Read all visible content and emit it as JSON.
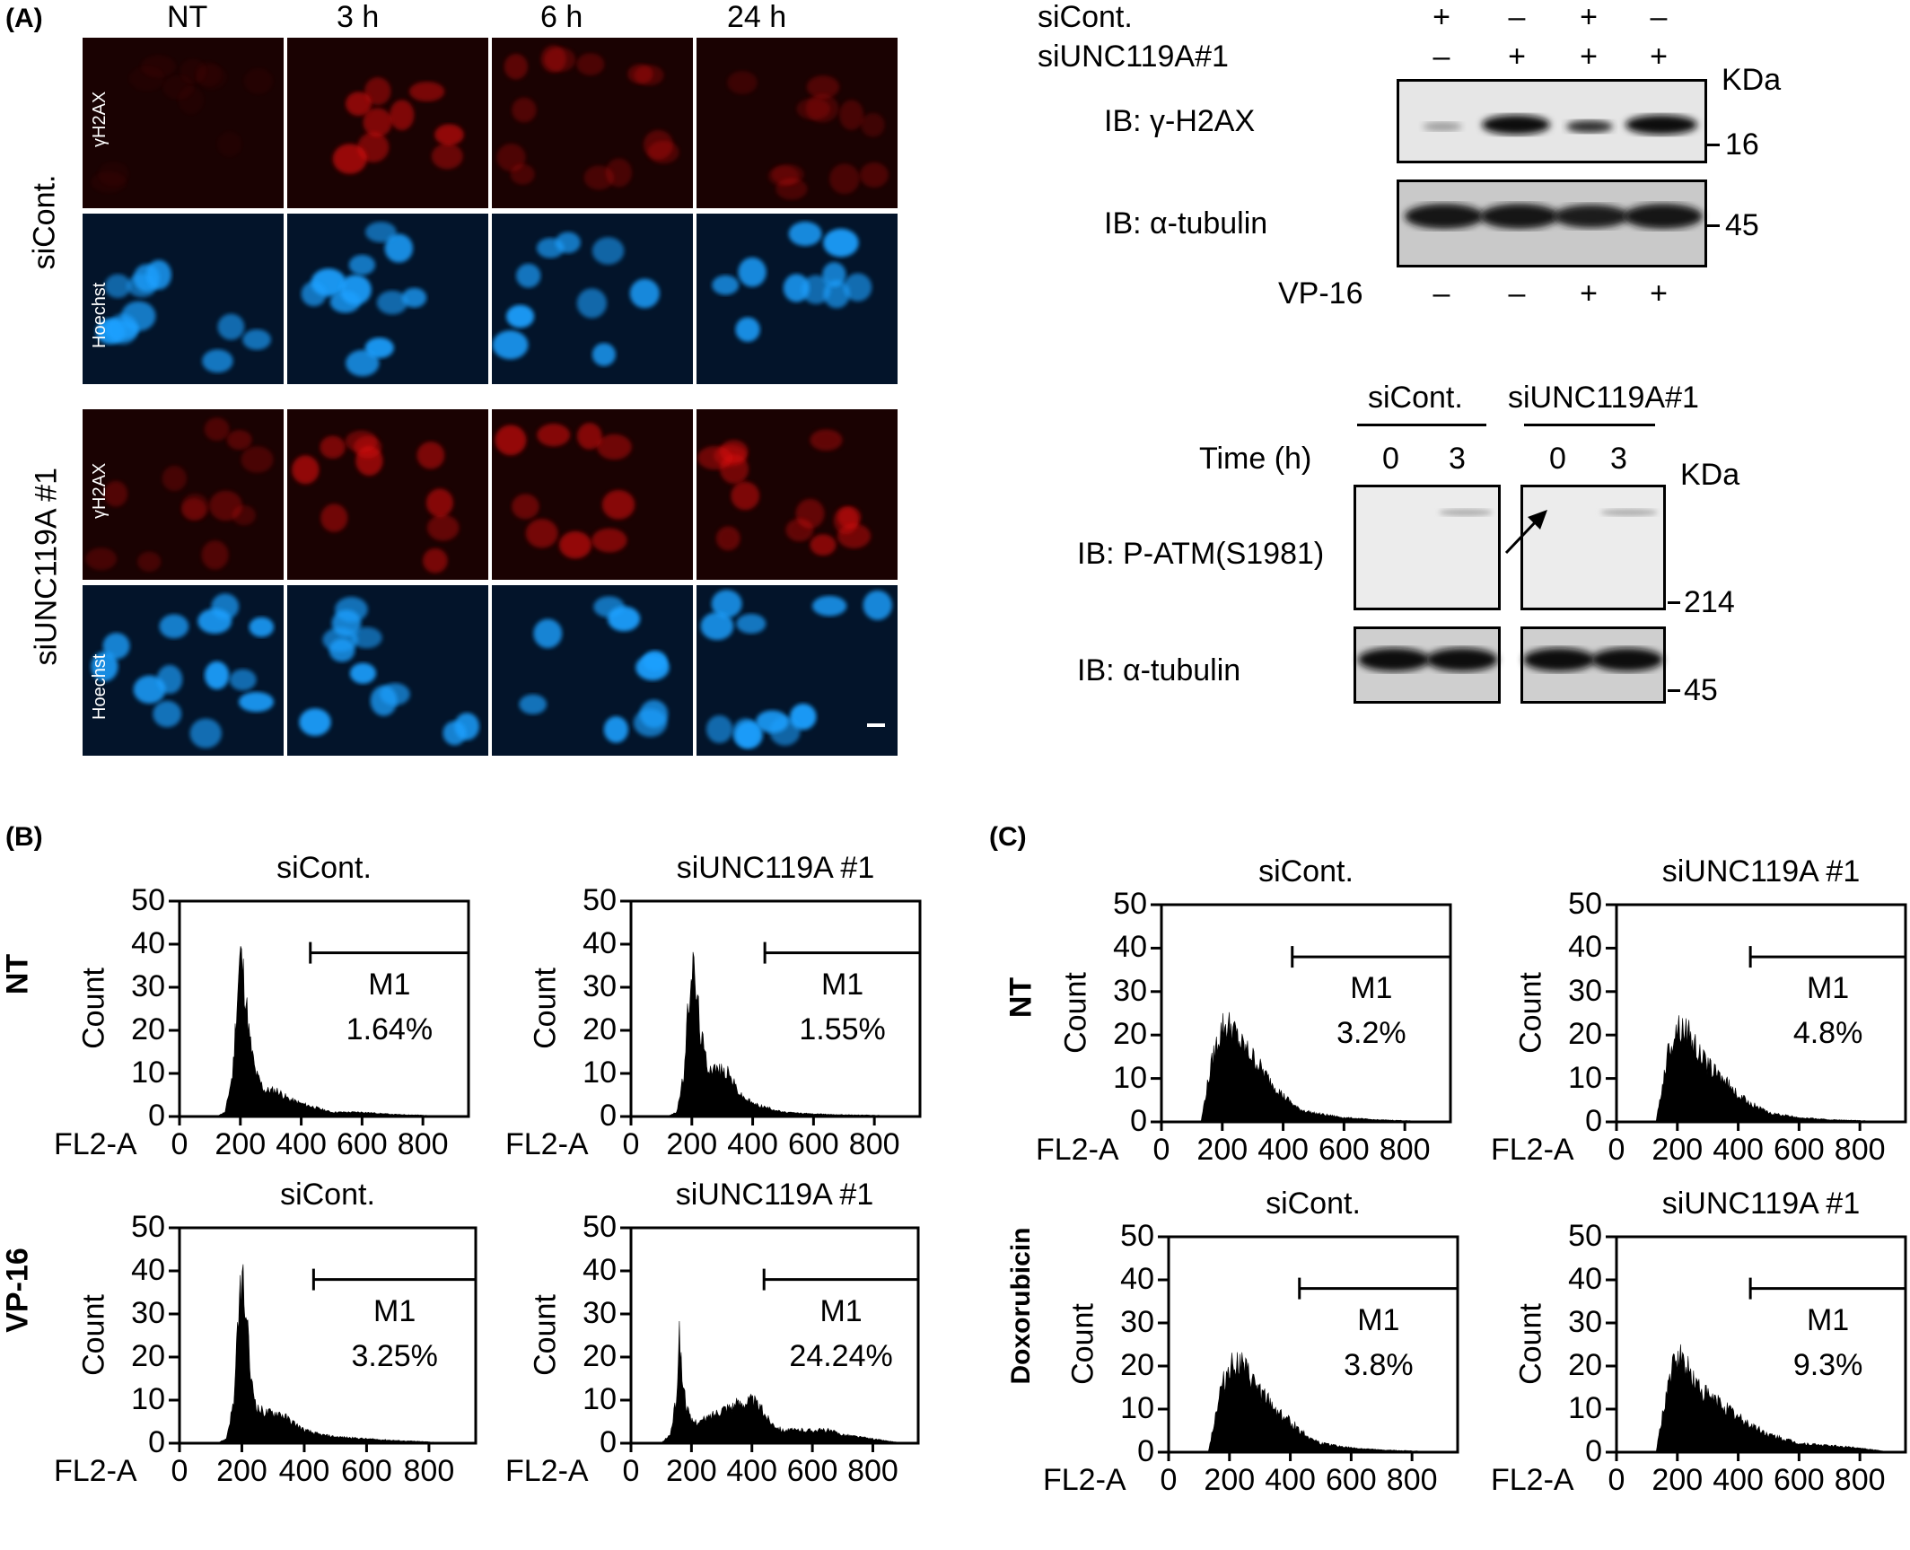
{
  "panel_labels": {
    "a": "(A)",
    "b": "(B)",
    "c": "(C)"
  },
  "panelA": {
    "columns": [
      "NT",
      "3 h",
      "6 h",
      "24 h"
    ],
    "row_groups": [
      "siCont.",
      "siUNC119A #1"
    ],
    "stains": [
      "γH2AX",
      "Hoechst"
    ]
  },
  "blot1": {
    "row_labels": [
      "siCont.",
      "siUNC119A#1"
    ],
    "sicont_signs": [
      "+",
      "–",
      "+",
      "–"
    ],
    "siunc_signs": [
      "–",
      "+",
      "+",
      "+"
    ],
    "kda": "KDa",
    "bands": [
      "IB: γ-H2AX",
      "IB: α-tubulin"
    ],
    "markers": [
      "16",
      "45"
    ],
    "treatment_label": "VP-16",
    "vp16_signs": [
      "–",
      "–",
      "+",
      "+"
    ]
  },
  "blot2": {
    "group_labels": [
      "siCont.",
      "siUNC119A#1"
    ],
    "time_label": "Time (h)",
    "times": [
      "0",
      "3",
      "0",
      "3"
    ],
    "kda": "KDa",
    "bands": [
      "IB: P-ATM(S1981)",
      "IB: α-tubulin"
    ],
    "markers": [
      "214",
      "45"
    ]
  },
  "flow": {
    "row_labels_b": [
      "NT",
      "VP-16"
    ],
    "row_labels_c": [
      "NT",
      "Doxorubicin"
    ],
    "ylabel": "Count",
    "xlabel": "FL2-A",
    "gate": "M1"
  },
  "chart_data": [
    {
      "type": "area",
      "panel": "B",
      "row": "NT",
      "title": "siCont.",
      "gate_percent": "1.64%",
      "xlim": [
        0,
        950
      ],
      "ylim": [
        0,
        50
      ],
      "x_ticks": [
        "0",
        "200",
        "400",
        "600",
        "800"
      ],
      "y_ticks": [
        "0",
        "10",
        "20",
        "30",
        "40",
        "50"
      ],
      "x": [
        120,
        150,
        175,
        190,
        200,
        215,
        230,
        250,
        280,
        320,
        360,
        400,
        450,
        500,
        600,
        700,
        800,
        900
      ],
      "y": [
        0,
        1,
        10,
        28,
        38,
        30,
        18,
        10,
        6,
        6,
        4,
        3,
        2,
        1,
        1,
        0.5,
        0.3,
        0
      ]
    },
    {
      "type": "area",
      "panel": "B",
      "row": "NT",
      "title": "siUNC119A #1",
      "gate_percent": "1.55%",
      "xlim": [
        0,
        950
      ],
      "ylim": [
        0,
        50
      ],
      "x_ticks": [
        "0",
        "200",
        "400",
        "600",
        "800"
      ],
      "y_ticks": [
        "0",
        "10",
        "20",
        "30",
        "40",
        "50"
      ],
      "x": [
        120,
        150,
        175,
        190,
        200,
        215,
        230,
        250,
        280,
        320,
        360,
        400,
        450,
        500,
        600,
        700,
        800,
        900
      ],
      "y": [
        0,
        1,
        10,
        27,
        36,
        29,
        19,
        12,
        11,
        10,
        5,
        3,
        2,
        1,
        0.6,
        0.4,
        0.3,
        0
      ]
    },
    {
      "type": "area",
      "panel": "B",
      "row": "VP-16",
      "title": "siCont.",
      "gate_percent": "3.25%",
      "xlim": [
        0,
        950
      ],
      "ylim": [
        0,
        50
      ],
      "x_ticks": [
        "0",
        "200",
        "400",
        "600",
        "800"
      ],
      "y_ticks": [
        "0",
        "10",
        "20",
        "30",
        "40",
        "50"
      ],
      "x": [
        120,
        150,
        175,
        190,
        200,
        215,
        230,
        250,
        280,
        320,
        360,
        400,
        450,
        500,
        600,
        700,
        800,
        900
      ],
      "y": [
        0,
        1,
        10,
        30,
        39,
        28,
        14,
        8,
        7,
        7,
        5,
        3,
        2,
        1.5,
        1,
        0.6,
        0.3,
        0
      ]
    },
    {
      "type": "area",
      "panel": "B",
      "row": "VP-16",
      "title": "siUNC119A #1",
      "gate_percent": "24.24%",
      "xlim": [
        0,
        950
      ],
      "ylim": [
        0,
        50
      ],
      "x_ticks": [
        "0",
        "200",
        "400",
        "600",
        "800"
      ],
      "y_ticks": [
        "0",
        "10",
        "20",
        "30",
        "40",
        "50"
      ],
      "x": [
        100,
        130,
        150,
        160,
        170,
        185,
        200,
        230,
        260,
        300,
        350,
        400,
        430,
        460,
        500,
        550,
        600,
        650,
        700,
        800,
        900
      ],
      "y": [
        0,
        2,
        10,
        25,
        15,
        8,
        5,
        5,
        6,
        8,
        9,
        10,
        8,
        5,
        3,
        3,
        3,
        3,
        2,
        1,
        0
      ]
    },
    {
      "type": "area",
      "panel": "C",
      "row": "NT",
      "title": "siCont.",
      "gate_percent": "3.2%",
      "xlim": [
        0,
        950
      ],
      "ylim": [
        0,
        50
      ],
      "x_ticks": [
        "0",
        "200",
        "400",
        "600",
        "800"
      ],
      "y_ticks": [
        "0",
        "10",
        "20",
        "30",
        "40",
        "50"
      ],
      "x": [
        130,
        150,
        170,
        200,
        230,
        260,
        300,
        350,
        400,
        450,
        500,
        600,
        700,
        800,
        900
      ],
      "y": [
        0,
        8,
        15,
        22,
        22,
        18,
        15,
        10,
        6,
        3,
        2,
        1,
        0.5,
        0.3,
        0
      ]
    },
    {
      "type": "area",
      "panel": "C",
      "row": "NT",
      "title": "siUNC119A #1",
      "gate_percent": "4.8%",
      "xlim": [
        0,
        950
      ],
      "ylim": [
        0,
        50
      ],
      "x_ticks": [
        "0",
        "200",
        "400",
        "600",
        "800"
      ],
      "y_ticks": [
        "0",
        "10",
        "20",
        "30",
        "40",
        "50"
      ],
      "x": [
        130,
        150,
        170,
        200,
        230,
        260,
        300,
        350,
        400,
        450,
        500,
        600,
        700,
        800,
        900
      ],
      "y": [
        0,
        8,
        16,
        22,
        21,
        17,
        13,
        10,
        6,
        4,
        2,
        1,
        0.5,
        0.3,
        0
      ]
    },
    {
      "type": "area",
      "panel": "C",
      "row": "Doxorubicin",
      "title": "siCont.",
      "gate_percent": "3.8%",
      "xlim": [
        0,
        950
      ],
      "ylim": [
        0,
        50
      ],
      "x_ticks": [
        "0",
        "200",
        "400",
        "600",
        "800"
      ],
      "y_ticks": [
        "0",
        "10",
        "20",
        "30",
        "40",
        "50"
      ],
      "x": [
        130,
        150,
        170,
        200,
        230,
        260,
        300,
        350,
        400,
        450,
        500,
        600,
        700,
        800,
        900
      ],
      "y": [
        0,
        7,
        14,
        20,
        21,
        18,
        14,
        10,
        7,
        4,
        2,
        1,
        0.5,
        0.3,
        0
      ]
    },
    {
      "type": "area",
      "panel": "C",
      "row": "Doxorubicin",
      "title": "siUNC119A #1",
      "gate_percent": "9.3%",
      "xlim": [
        0,
        950
      ],
      "ylim": [
        0,
        50
      ],
      "x_ticks": [
        "0",
        "200",
        "400",
        "600",
        "800"
      ],
      "y_ticks": [
        "0",
        "10",
        "20",
        "30",
        "40",
        "50"
      ],
      "x": [
        130,
        150,
        170,
        200,
        230,
        260,
        300,
        350,
        400,
        450,
        500,
        600,
        700,
        800,
        900
      ],
      "y": [
        0,
        8,
        16,
        22,
        20,
        16,
        13,
        11,
        8,
        6,
        4,
        2,
        1.5,
        1,
        0
      ]
    }
  ]
}
